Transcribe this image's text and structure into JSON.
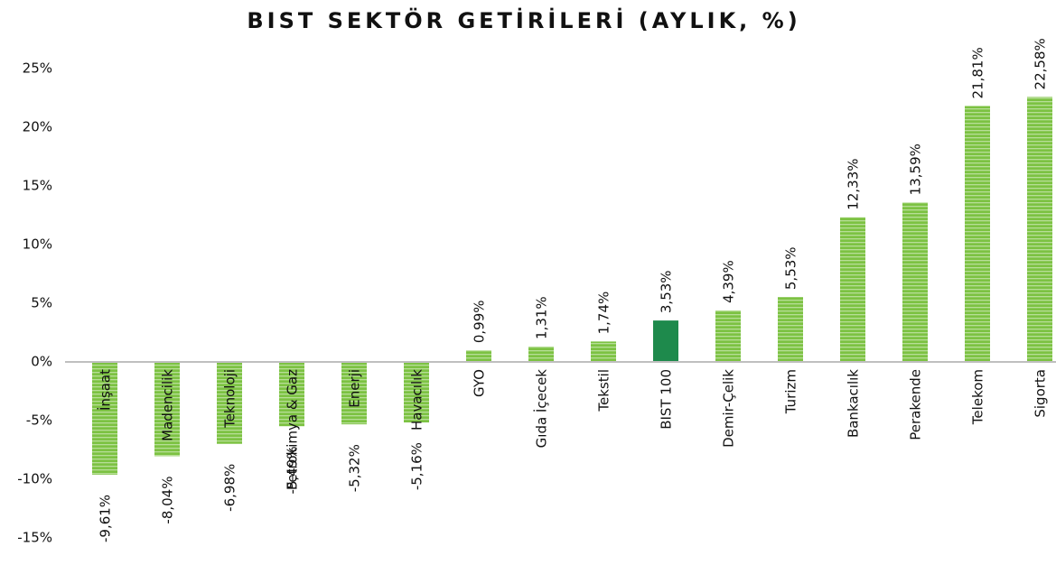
{
  "chart_data": {
    "type": "bar",
    "title": "BIST SEKTÖR GETİRİLERİ (AYLIK, %)",
    "categories": [
      "İnşaat",
      "Madencilik",
      "Teknoloji",
      "Petrokimya & Gaz",
      "Enerji",
      "Havacılık",
      "GYO",
      "Gıda İçecek",
      "Tekstil",
      "BIST 100",
      "Demir-Çelik",
      "Turizm",
      "Bankacılık",
      "Perakende",
      "Telekom",
      "Sigorta"
    ],
    "values": [
      -9.61,
      -8.04,
      -6.98,
      -5.49,
      -5.32,
      -5.16,
      0.99,
      1.31,
      1.74,
      3.53,
      4.39,
      5.53,
      12.33,
      13.59,
      21.81,
      22.58
    ],
    "value_labels": [
      "-9,61%",
      "-8,04%",
      "-6,98%",
      "-5,49%",
      "-5,32%",
      "-5,16%",
      "0,99%",
      "1,31%",
      "1,74%",
      "3,53%",
      "4,39%",
      "5,53%",
      "12,33%",
      "13,59%",
      "21,81%",
      "22,58%"
    ],
    "colors": [
      "#7cc242",
      "#7cc242",
      "#7cc242",
      "#7cc242",
      "#7cc242",
      "#7cc242",
      "#7cc242",
      "#7cc242",
      "#7cc242",
      "#1e8a4c",
      "#7cc242",
      "#7cc242",
      "#7cc242",
      "#7cc242",
      "#7cc242",
      "#7cc242"
    ],
    "ylim": [
      -15,
      25
    ],
    "yticks": [
      {
        "value": -15,
        "label": "-15%"
      },
      {
        "value": -10,
        "label": "-10%"
      },
      {
        "value": -5,
        "label": "-5%"
      },
      {
        "value": 0,
        "label": "0%"
      },
      {
        "value": 5,
        "label": "5%"
      },
      {
        "value": 10,
        "label": "10%"
      },
      {
        "value": 15,
        "label": "15%"
      },
      {
        "value": 20,
        "label": "20%"
      },
      {
        "value": 25,
        "label": "25%"
      }
    ],
    "grid": false
  }
}
